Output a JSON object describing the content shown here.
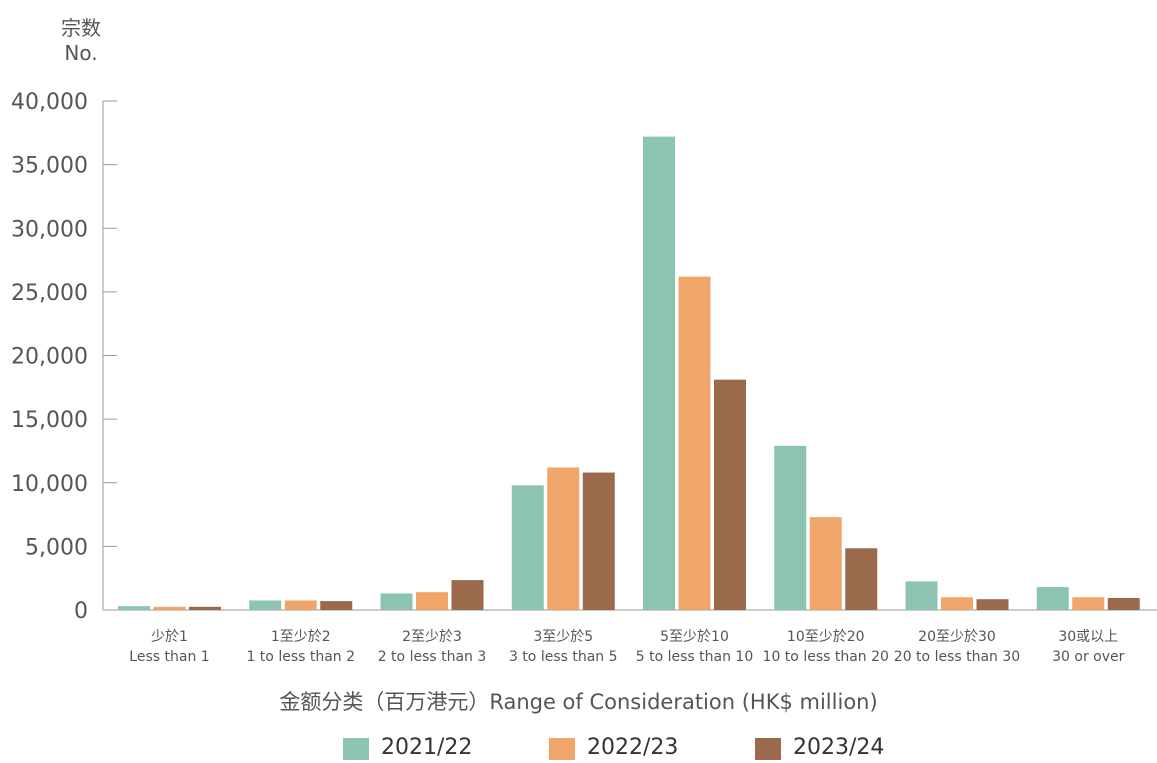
{
  "yaxis": {
    "label_cn": "宗数",
    "label_en": "No."
  },
  "xaxis": {
    "title": "金额分类（百万港元）Range of Consideration (HK$ million)"
  },
  "legend": [
    {
      "label": "2021/22",
      "color": "#8cc4b0"
    },
    {
      "label": "2022/23",
      "color": "#f0a66a"
    },
    {
      "label": "2023/24",
      "color": "#9b6a4c"
    }
  ],
  "chart_data": {
    "type": "bar",
    "title": "",
    "ylabel": "宗数 No.",
    "xlabel": "金额分类（百万港元）Range of Consideration (HK$ million)",
    "ylim": [
      0,
      40000
    ],
    "yticks": [
      "0",
      "5,000",
      "10,000",
      "15,000",
      "20,000",
      "25,000",
      "30,000",
      "35,000",
      "40,000"
    ],
    "ytick_values": [
      0,
      5000,
      10000,
      15000,
      20000,
      25000,
      30000,
      35000,
      40000
    ],
    "categories": [
      {
        "cn": "少於1",
        "en": "Less than 1"
      },
      {
        "cn": "1至少於2",
        "en": "1 to less than 2"
      },
      {
        "cn": "2至少於3",
        "en": "2 to less than 3"
      },
      {
        "cn": "3至少於5",
        "en": "3 to less than 5"
      },
      {
        "cn": "5至少於10",
        "en": "5 to less than 10"
      },
      {
        "cn": "10至少於20",
        "en": "10 to less than 20"
      },
      {
        "cn": "20至少於30",
        "en": "20 to less than 30"
      },
      {
        "cn": "30或以上",
        "en": "30 or over"
      }
    ],
    "series": [
      {
        "name": "2021/22",
        "color": "#8cc4b0",
        "values": [
          300,
          750,
          1300,
          9800,
          37200,
          12900,
          2250,
          1800
        ]
      },
      {
        "name": "2022/23",
        "color": "#f0a66a",
        "values": [
          250,
          750,
          1400,
          11200,
          26200,
          7300,
          1000,
          1000
        ]
      },
      {
        "name": "2023/24",
        "color": "#9b6a4c",
        "values": [
          250,
          700,
          2350,
          10800,
          18100,
          4850,
          850,
          950
        ]
      }
    ]
  }
}
